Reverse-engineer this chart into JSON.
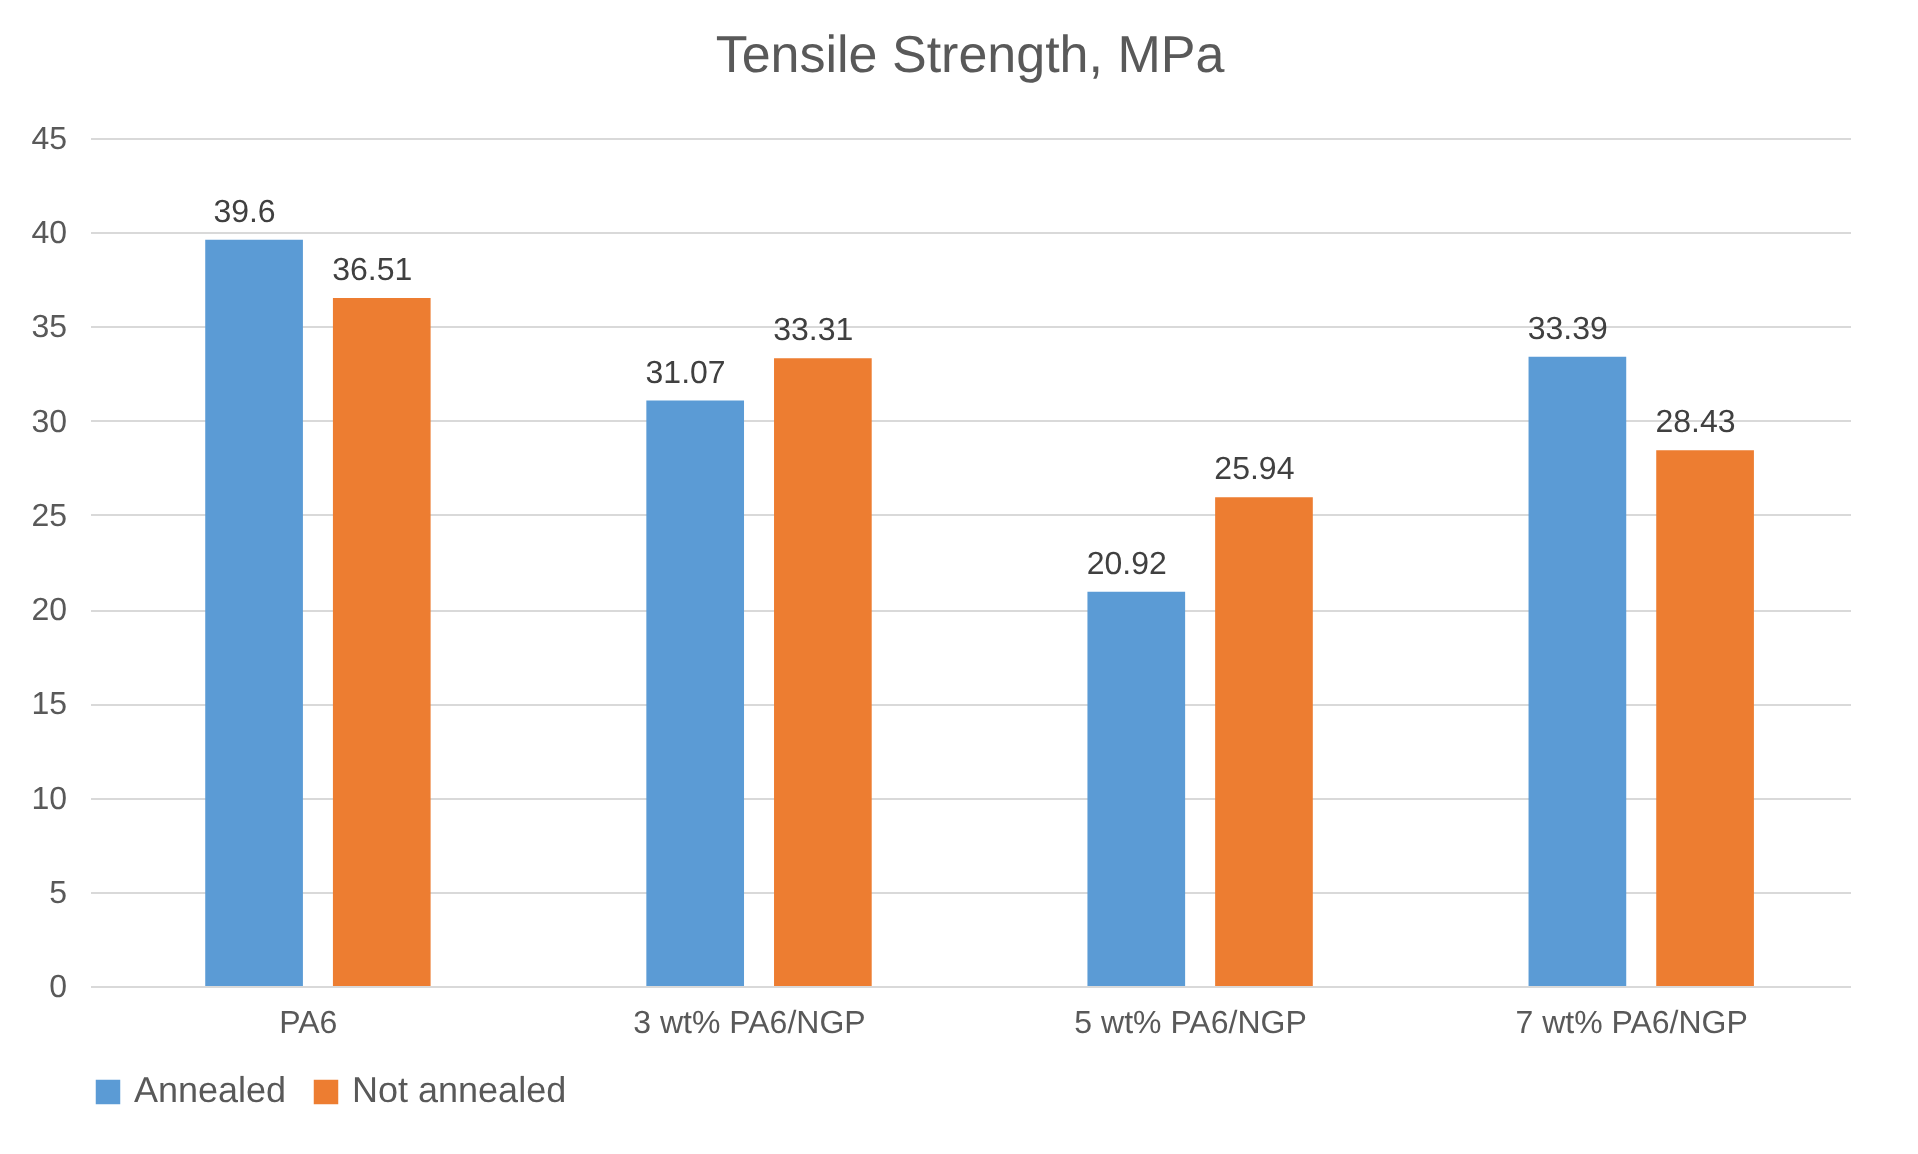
{
  "chart_data": {
    "type": "bar",
    "title": "Tensile Strength, MPa",
    "categories": [
      "PA6",
      "3 wt% PA6/NGP",
      "5 wt% PA6/NGP",
      "7 wt% PA6/NGP"
    ],
    "series": [
      {
        "name": "Annealed",
        "color": "#5b9bd5",
        "values": [
          39.6,
          31.07,
          20.92,
          33.39
        ]
      },
      {
        "name": "Not annealed",
        "color": "#ed7d31",
        "values": [
          36.51,
          33.31,
          25.94,
          28.43
        ]
      }
    ],
    "ylim": [
      0,
      45
    ],
    "yticks": [
      0,
      5,
      10,
      15,
      20,
      25,
      30,
      35,
      40,
      45
    ],
    "grid": "y",
    "legend": "bottom",
    "data_labels": true
  }
}
